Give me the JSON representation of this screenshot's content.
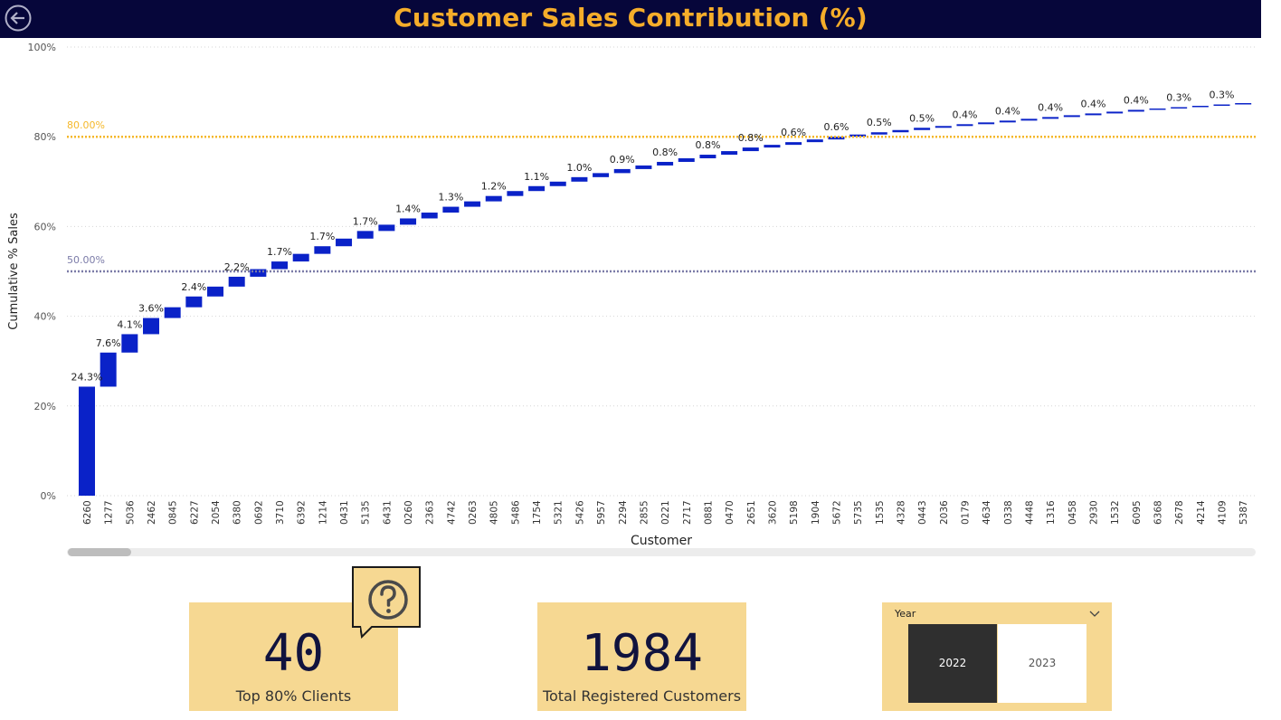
{
  "header": {
    "title": "Customer Sales Contribution (%)",
    "back_icon": "back-arrow-icon"
  },
  "chart_data": {
    "type": "waterfall",
    "title": "",
    "xlabel": "Customer",
    "ylabel": "Cumulative % Sales",
    "ylim": [
      0,
      100
    ],
    "yticks": [
      "0%",
      "20%",
      "40%",
      "60%",
      "80%",
      "100%"
    ],
    "grid": true,
    "bar_color": "#0a22c8",
    "categories": [
      "6260",
      "1277",
      "5036",
      "2462",
      "0845",
      "6227",
      "2054",
      "6380",
      "0692",
      "3710",
      "6392",
      "1214",
      "0431",
      "5135",
      "6431",
      "0260",
      "2363",
      "4742",
      "0263",
      "4805",
      "5486",
      "1754",
      "5321",
      "5426",
      "5957",
      "2294",
      "2855",
      "0221",
      "2717",
      "0881",
      "0470",
      "2651",
      "3620",
      "5198",
      "1904",
      "5672",
      "5735",
      "1535",
      "4328",
      "0443",
      "2036",
      "0179",
      "4634",
      "0338",
      "4448",
      "1316",
      "0458",
      "2930",
      "1532",
      "6095",
      "6368",
      "2678",
      "4214",
      "4109",
      "5387"
    ],
    "increments": [
      24.3,
      7.6,
      4.1,
      3.6,
      2.4,
      2.4,
      2.2,
      2.2,
      1.7,
      1.7,
      1.7,
      1.7,
      1.7,
      1.7,
      1.4,
      1.4,
      1.3,
      1.3,
      1.2,
      1.2,
      1.1,
      1.1,
      1.0,
      1.0,
      0.9,
      0.9,
      0.8,
      0.8,
      0.8,
      0.8,
      0.8,
      0.8,
      0.6,
      0.6,
      0.6,
      0.6,
      0.5,
      0.5,
      0.5,
      0.5,
      0.4,
      0.4,
      0.4,
      0.4,
      0.4,
      0.4,
      0.4,
      0.4,
      0.4,
      0.4,
      0.3,
      0.3,
      0.3,
      0.3,
      0.3
    ],
    "data_labels": [
      {
        "index": 0,
        "text": "24.3%"
      },
      {
        "index": 1,
        "text": "7.6%"
      },
      {
        "index": 2,
        "text": "4.1%"
      },
      {
        "index": 3,
        "text": "3.6%"
      },
      {
        "index": 5,
        "text": "2.4%"
      },
      {
        "index": 7,
        "text": "2.2%"
      },
      {
        "index": 9,
        "text": "1.7%"
      },
      {
        "index": 11,
        "text": "1.7%"
      },
      {
        "index": 13,
        "text": "1.7%"
      },
      {
        "index": 15,
        "text": "1.4%"
      },
      {
        "index": 17,
        "text": "1.3%"
      },
      {
        "index": 19,
        "text": "1.2%"
      },
      {
        "index": 21,
        "text": "1.1%"
      },
      {
        "index": 23,
        "text": "1.0%"
      },
      {
        "index": 25,
        "text": "0.9%"
      },
      {
        "index": 27,
        "text": "0.8%"
      },
      {
        "index": 29,
        "text": "0.8%"
      },
      {
        "index": 31,
        "text": "0.8%"
      },
      {
        "index": 33,
        "text": "0.6%"
      },
      {
        "index": 35,
        "text": "0.6%"
      },
      {
        "index": 37,
        "text": "0.5%"
      },
      {
        "index": 39,
        "text": "0.5%"
      },
      {
        "index": 41,
        "text": "0.4%"
      },
      {
        "index": 43,
        "text": "0.4%"
      },
      {
        "index": 45,
        "text": "0.4%"
      },
      {
        "index": 47,
        "text": "0.4%"
      },
      {
        "index": 49,
        "text": "0.4%"
      },
      {
        "index": 51,
        "text": "0.3%"
      },
      {
        "index": 53,
        "text": "0.3%"
      }
    ],
    "reference_lines": [
      {
        "value": 80,
        "label": "80.00%",
        "color": "#f5b82a"
      },
      {
        "value": 50,
        "label": "50.00%",
        "color": "#7b7ba8"
      }
    ]
  },
  "cards": {
    "top_clients": {
      "value": "40",
      "label": "Top 80% Clients"
    },
    "total_customers": {
      "value": "1984",
      "label": "Total Registered Customers"
    }
  },
  "help_icon": "question-mark-icon",
  "slicer": {
    "title": "Year",
    "chevron_icon": "chevron-down-icon",
    "options": [
      "2022",
      "2023"
    ],
    "selected": "2022"
  }
}
